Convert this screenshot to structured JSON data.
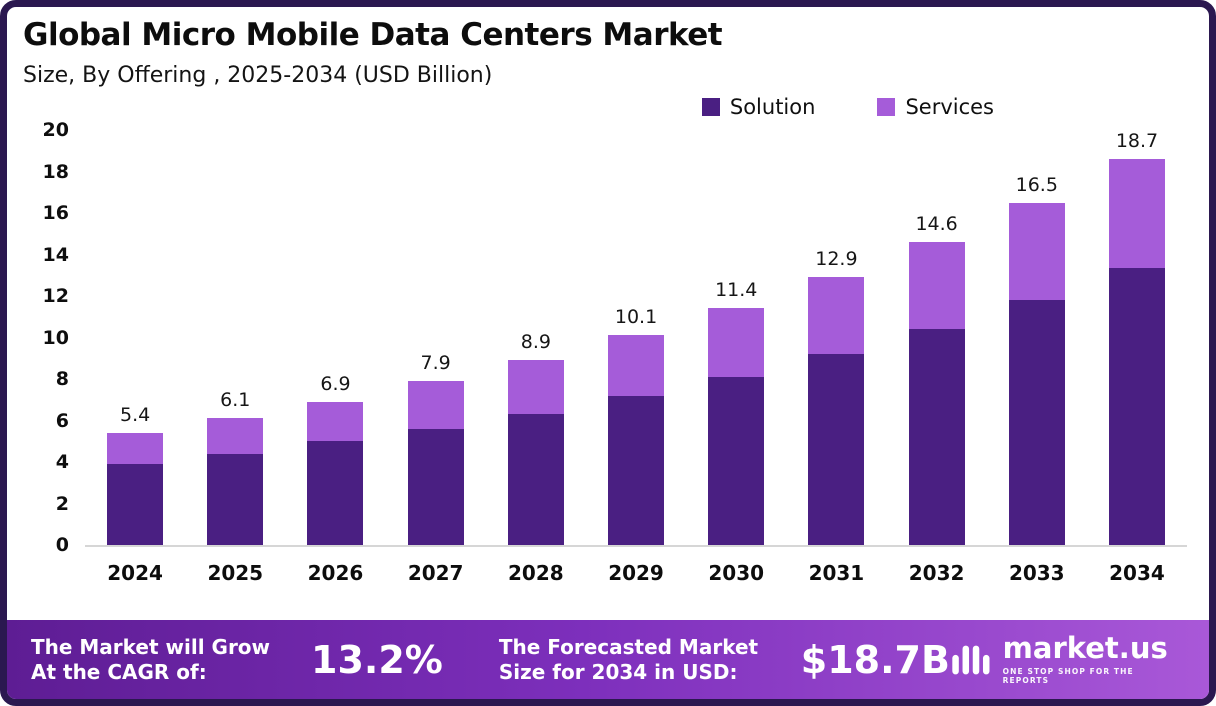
{
  "header": {
    "title": "Global Micro Mobile Data Centers Market",
    "subtitle": "Size, By Offering , 2025-2034 (USD Billion)"
  },
  "legend": [
    {
      "label": "Solution",
      "color": "#4a1f82"
    },
    {
      "label": "Services",
      "color": "#a55cd9"
    }
  ],
  "chart_data": {
    "type": "bar",
    "stacked": true,
    "title": "Global Micro Mobile Data Centers Market Size, By Offering, 2025-2034 (USD Billion)",
    "categories": [
      "2024",
      "2025",
      "2026",
      "2027",
      "2028",
      "2029",
      "2030",
      "2031",
      "2032",
      "2033",
      "2034"
    ],
    "series": [
      {
        "name": "Solution",
        "color": "#4a1f82",
        "values": [
          3.9,
          4.4,
          5.0,
          5.6,
          6.3,
          7.2,
          8.1,
          9.2,
          10.4,
          11.8,
          13.4
        ]
      },
      {
        "name": "Services",
        "color": "#a55cd9",
        "values": [
          1.5,
          1.7,
          1.9,
          2.3,
          2.6,
          2.9,
          3.3,
          3.7,
          4.2,
          4.7,
          5.3
        ]
      }
    ],
    "totals": [
      5.4,
      6.1,
      6.9,
      7.9,
      8.9,
      10.1,
      11.4,
      12.9,
      14.6,
      16.5,
      18.7
    ],
    "xlabel": "",
    "ylabel": "",
    "ylim": [
      0,
      20
    ],
    "yticks": [
      0,
      2,
      4,
      6,
      8,
      10,
      12,
      14,
      16,
      18,
      20
    ],
    "grid": false,
    "legend_position": "top-right"
  },
  "footer": {
    "cagr_label": "The Market will Grow At the CAGR of:",
    "cagr_value": "13.2%",
    "forecast_label": "The Forecasted Market Size for 2034 in USD:",
    "forecast_value": "$18.7B",
    "brand": "market.us",
    "brand_tagline": "ONE STOP SHOP FOR THE REPORTS"
  }
}
